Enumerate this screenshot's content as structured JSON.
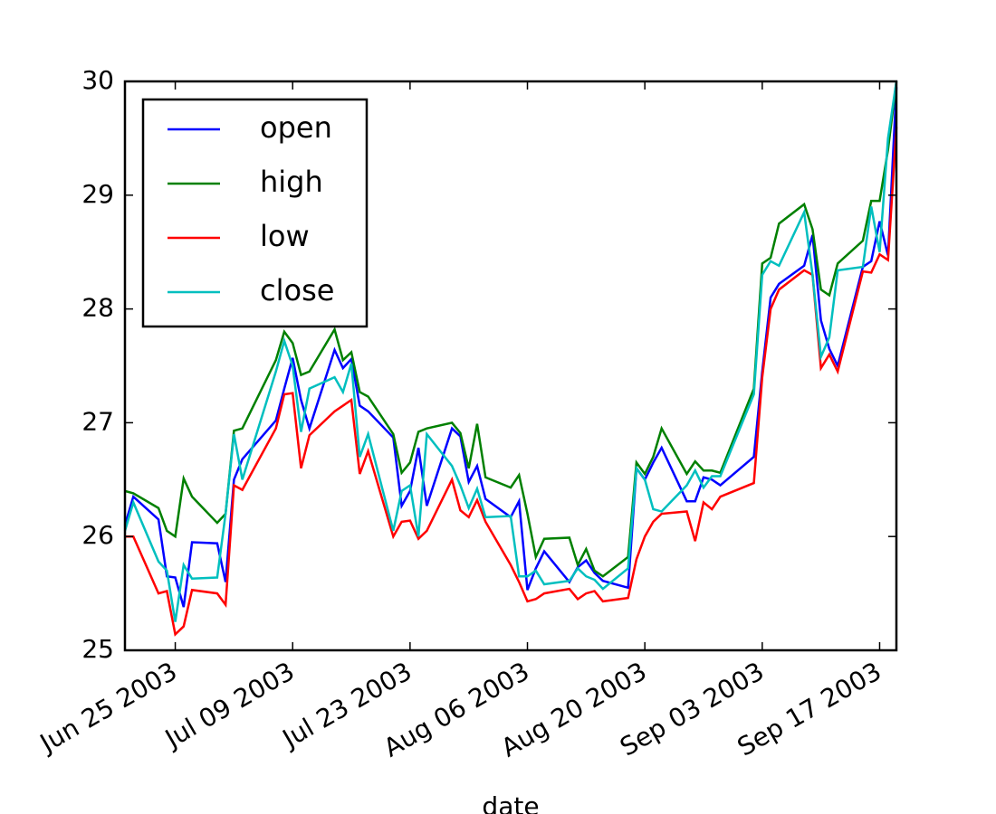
{
  "chart_data": {
    "type": "line",
    "x_label": "date",
    "x": [
      "2003-06-19",
      "2003-06-20",
      "2003-06-23",
      "2003-06-24",
      "2003-06-25",
      "2003-06-26",
      "2003-06-27",
      "2003-06-30",
      "2003-07-01",
      "2003-07-02",
      "2003-07-03",
      "2003-07-07",
      "2003-07-08",
      "2003-07-09",
      "2003-07-10",
      "2003-07-11",
      "2003-07-14",
      "2003-07-15",
      "2003-07-16",
      "2003-07-17",
      "2003-07-18",
      "2003-07-21",
      "2003-07-22",
      "2003-07-23",
      "2003-07-24",
      "2003-07-25",
      "2003-07-28",
      "2003-07-29",
      "2003-07-30",
      "2003-07-31",
      "2003-08-01",
      "2003-08-04",
      "2003-08-05",
      "2003-08-06",
      "2003-08-07",
      "2003-08-08",
      "2003-08-11",
      "2003-08-12",
      "2003-08-13",
      "2003-08-14",
      "2003-08-15",
      "2003-08-18",
      "2003-08-19",
      "2003-08-20",
      "2003-08-21",
      "2003-08-22",
      "2003-08-25",
      "2003-08-26",
      "2003-08-27",
      "2003-08-28",
      "2003-08-29",
      "2003-09-02",
      "2003-09-03",
      "2003-09-04",
      "2003-09-05",
      "2003-09-08",
      "2003-09-09",
      "2003-09-10",
      "2003-09-11",
      "2003-09-12",
      "2003-09-15",
      "2003-09-16",
      "2003-09-17",
      "2003-09-18",
      "2003-09-19"
    ],
    "series": [
      {
        "name": "open",
        "color": "#0000ff",
        "values": [
          26.1,
          26.35,
          26.15,
          25.65,
          25.64,
          25.38,
          25.95,
          25.94,
          25.6,
          26.5,
          26.68,
          27.02,
          27.3,
          27.57,
          27.2,
          26.95,
          27.64,
          27.48,
          27.56,
          27.15,
          27.1,
          26.87,
          26.27,
          26.4,
          26.78,
          26.27,
          26.95,
          26.88,
          26.48,
          26.62,
          26.33,
          26.17,
          26.31,
          25.53,
          25.72,
          25.87,
          25.6,
          25.73,
          25.79,
          25.68,
          25.61,
          25.55,
          26.6,
          26.5,
          26.65,
          26.78,
          26.31,
          26.31,
          26.52,
          26.5,
          26.45,
          26.7,
          27.45,
          28.1,
          28.22,
          28.38,
          28.65,
          27.9,
          27.65,
          27.5,
          28.37,
          28.42,
          28.77,
          28.47,
          29.95
        ]
      },
      {
        "name": "high",
        "color": "#008000",
        "values": [
          26.4,
          26.38,
          26.25,
          26.05,
          26.0,
          26.51,
          26.35,
          26.12,
          26.2,
          26.93,
          26.95,
          27.55,
          27.8,
          27.7,
          27.42,
          27.45,
          27.82,
          27.55,
          27.62,
          27.27,
          27.23,
          26.9,
          26.56,
          26.65,
          26.92,
          26.95,
          27.0,
          26.91,
          26.6,
          26.99,
          26.52,
          26.43,
          26.54,
          26.2,
          25.82,
          25.98,
          25.99,
          25.75,
          25.89,
          25.7,
          25.65,
          25.82,
          26.65,
          26.55,
          26.7,
          26.95,
          26.55,
          26.66,
          26.58,
          26.58,
          26.56,
          27.3,
          28.4,
          28.45,
          28.75,
          28.92,
          28.7,
          28.17,
          28.12,
          28.4,
          28.6,
          28.95,
          28.95,
          29.4,
          30.0
        ]
      },
      {
        "name": "low",
        "color": "#ff0000",
        "values": [
          26.0,
          26.0,
          25.5,
          25.52,
          25.14,
          25.21,
          25.53,
          25.5,
          25.4,
          26.45,
          26.41,
          26.95,
          27.25,
          27.26,
          26.6,
          26.89,
          27.1,
          27.15,
          27.2,
          26.55,
          26.75,
          26.0,
          26.13,
          26.14,
          25.98,
          26.05,
          26.5,
          26.23,
          26.17,
          26.32,
          26.13,
          25.75,
          25.6,
          25.43,
          25.45,
          25.5,
          25.54,
          25.45,
          25.5,
          25.52,
          25.43,
          25.46,
          25.8,
          26.0,
          26.13,
          26.2,
          26.22,
          25.96,
          26.3,
          26.24,
          26.35,
          26.47,
          27.4,
          28.0,
          28.17,
          28.34,
          28.3,
          27.48,
          27.6,
          27.45,
          28.33,
          28.32,
          28.48,
          28.43,
          29.6
        ]
      },
      {
        "name": "close",
        "color": "#00bfbf",
        "values": [
          26.05,
          26.3,
          25.78,
          25.7,
          25.25,
          25.75,
          25.63,
          25.64,
          26.2,
          26.9,
          26.5,
          27.45,
          27.72,
          27.5,
          26.92,
          27.3,
          27.4,
          27.27,
          27.52,
          26.7,
          26.9,
          26.05,
          26.4,
          26.45,
          26.0,
          26.9,
          26.62,
          26.45,
          26.25,
          26.42,
          26.17,
          26.18,
          25.65,
          25.65,
          25.7,
          25.58,
          25.61,
          25.72,
          25.65,
          25.62,
          25.54,
          25.72,
          26.6,
          26.5,
          26.24,
          26.22,
          26.45,
          26.58,
          26.43,
          26.53,
          26.53,
          27.25,
          28.3,
          28.42,
          28.38,
          28.85,
          28.3,
          27.58,
          27.75,
          28.34,
          28.37,
          28.9,
          28.5,
          29.5,
          30.0
        ]
      }
    ],
    "xlim": [
      "2003-06-19",
      "2003-09-19"
    ],
    "xticks": [
      {
        "value": "2003-06-25",
        "label": "Jun 25 2003"
      },
      {
        "value": "2003-07-09",
        "label": "Jul 09 2003"
      },
      {
        "value": "2003-07-23",
        "label": "Jul 23 2003"
      },
      {
        "value": "2003-08-06",
        "label": "Aug 06 2003"
      },
      {
        "value": "2003-08-20",
        "label": "Aug 20 2003"
      },
      {
        "value": "2003-09-03",
        "label": "Sep 03 2003"
      },
      {
        "value": "2003-09-17",
        "label": "Sep 17 2003"
      }
    ],
    "ylim": [
      25,
      30
    ],
    "yticks": [
      25,
      26,
      27,
      28,
      29,
      30
    ],
    "legend": "upper left",
    "grid": false
  }
}
